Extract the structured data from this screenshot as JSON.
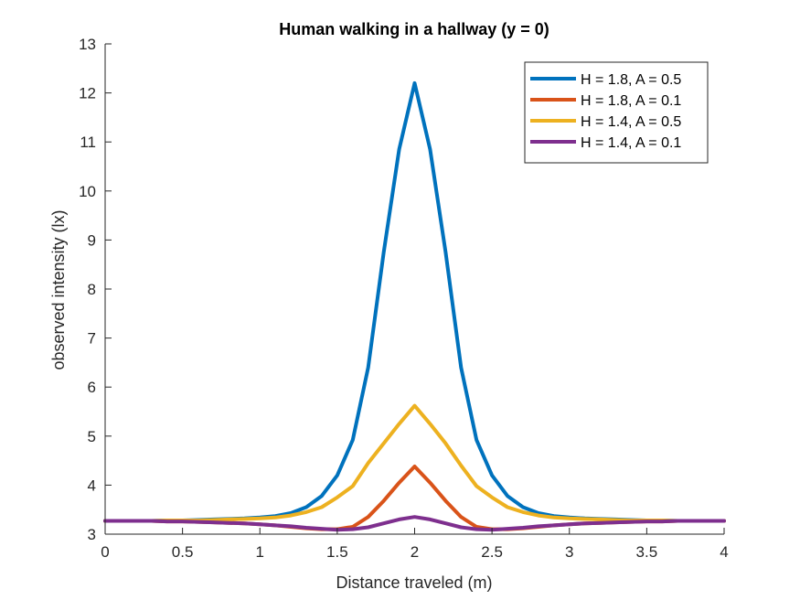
{
  "chart_data": {
    "type": "line",
    "title": "Human walking in a hallway (y = 0)",
    "xlabel": "Distance traveled (m)",
    "ylabel": "observed intensity (lx)",
    "xlim": [
      0,
      4
    ],
    "ylim": [
      3,
      13
    ],
    "xticks": [
      0,
      0.5,
      1,
      1.5,
      2,
      2.5,
      3,
      3.5,
      4
    ],
    "xtick_labels": [
      "0",
      "0.5",
      "1",
      "1.5",
      "2",
      "2.5",
      "3",
      "3.5",
      "4"
    ],
    "yticks": [
      3,
      4,
      5,
      6,
      7,
      8,
      9,
      10,
      11,
      12,
      13
    ],
    "ytick_labels": [
      "3",
      "4",
      "5",
      "6",
      "7",
      "8",
      "9",
      "10",
      "11",
      "12",
      "13"
    ],
    "grid": false,
    "legend_position": "top-right",
    "x": [
      0,
      0.1,
      0.2,
      0.3,
      0.4,
      0.5,
      0.6,
      0.7,
      0.8,
      0.9,
      1.0,
      1.1,
      1.2,
      1.3,
      1.4,
      1.5,
      1.6,
      1.7,
      1.8,
      1.9,
      2.0,
      2.1,
      2.2,
      2.3,
      2.4,
      2.5,
      2.6,
      2.7,
      2.8,
      2.9,
      3.0,
      3.1,
      3.2,
      3.3,
      3.4,
      3.5,
      3.6,
      3.7,
      3.8,
      3.9,
      4.0
    ],
    "series": [
      {
        "name": "H = 1.8, A = 0.5",
        "color": "#0072BD",
        "values": [
          3.27,
          3.27,
          3.27,
          3.27,
          3.28,
          3.28,
          3.29,
          3.3,
          3.31,
          3.32,
          3.34,
          3.37,
          3.43,
          3.55,
          3.78,
          4.2,
          4.92,
          6.4,
          8.75,
          10.85,
          12.2,
          10.85,
          8.75,
          6.4,
          4.92,
          4.2,
          3.78,
          3.55,
          3.43,
          3.37,
          3.34,
          3.32,
          3.31,
          3.3,
          3.29,
          3.28,
          3.28,
          3.27,
          3.27,
          3.27,
          3.27
        ]
      },
      {
        "name": "H = 1.8, A = 0.1",
        "color": "#D95319",
        "values": [
          3.27,
          3.27,
          3.27,
          3.27,
          3.26,
          3.26,
          3.25,
          3.24,
          3.23,
          3.22,
          3.2,
          3.18,
          3.15,
          3.12,
          3.1,
          3.1,
          3.15,
          3.35,
          3.68,
          4.05,
          4.38,
          4.05,
          3.68,
          3.35,
          3.15,
          3.1,
          3.1,
          3.12,
          3.15,
          3.18,
          3.2,
          3.22,
          3.23,
          3.24,
          3.25,
          3.26,
          3.26,
          3.27,
          3.27,
          3.27,
          3.27
        ]
      },
      {
        "name": "H = 1.4, A = 0.5",
        "color": "#EDB120",
        "values": [
          3.27,
          3.27,
          3.27,
          3.27,
          3.28,
          3.28,
          3.28,
          3.29,
          3.3,
          3.31,
          3.32,
          3.34,
          3.38,
          3.45,
          3.55,
          3.75,
          3.98,
          4.45,
          4.85,
          5.25,
          5.62,
          5.25,
          4.85,
          4.4,
          3.98,
          3.75,
          3.55,
          3.45,
          3.38,
          3.34,
          3.32,
          3.31,
          3.3,
          3.29,
          3.28,
          3.28,
          3.28,
          3.27,
          3.27,
          3.27,
          3.27
        ]
      },
      {
        "name": "H = 1.4, A = 0.1",
        "color": "#7E2F8E",
        "values": [
          3.27,
          3.27,
          3.27,
          3.27,
          3.26,
          3.26,
          3.25,
          3.24,
          3.23,
          3.22,
          3.2,
          3.18,
          3.16,
          3.13,
          3.11,
          3.09,
          3.1,
          3.14,
          3.22,
          3.3,
          3.35,
          3.3,
          3.22,
          3.14,
          3.1,
          3.09,
          3.11,
          3.13,
          3.16,
          3.18,
          3.2,
          3.22,
          3.23,
          3.24,
          3.25,
          3.26,
          3.26,
          3.27,
          3.27,
          3.27,
          3.27
        ]
      }
    ]
  }
}
